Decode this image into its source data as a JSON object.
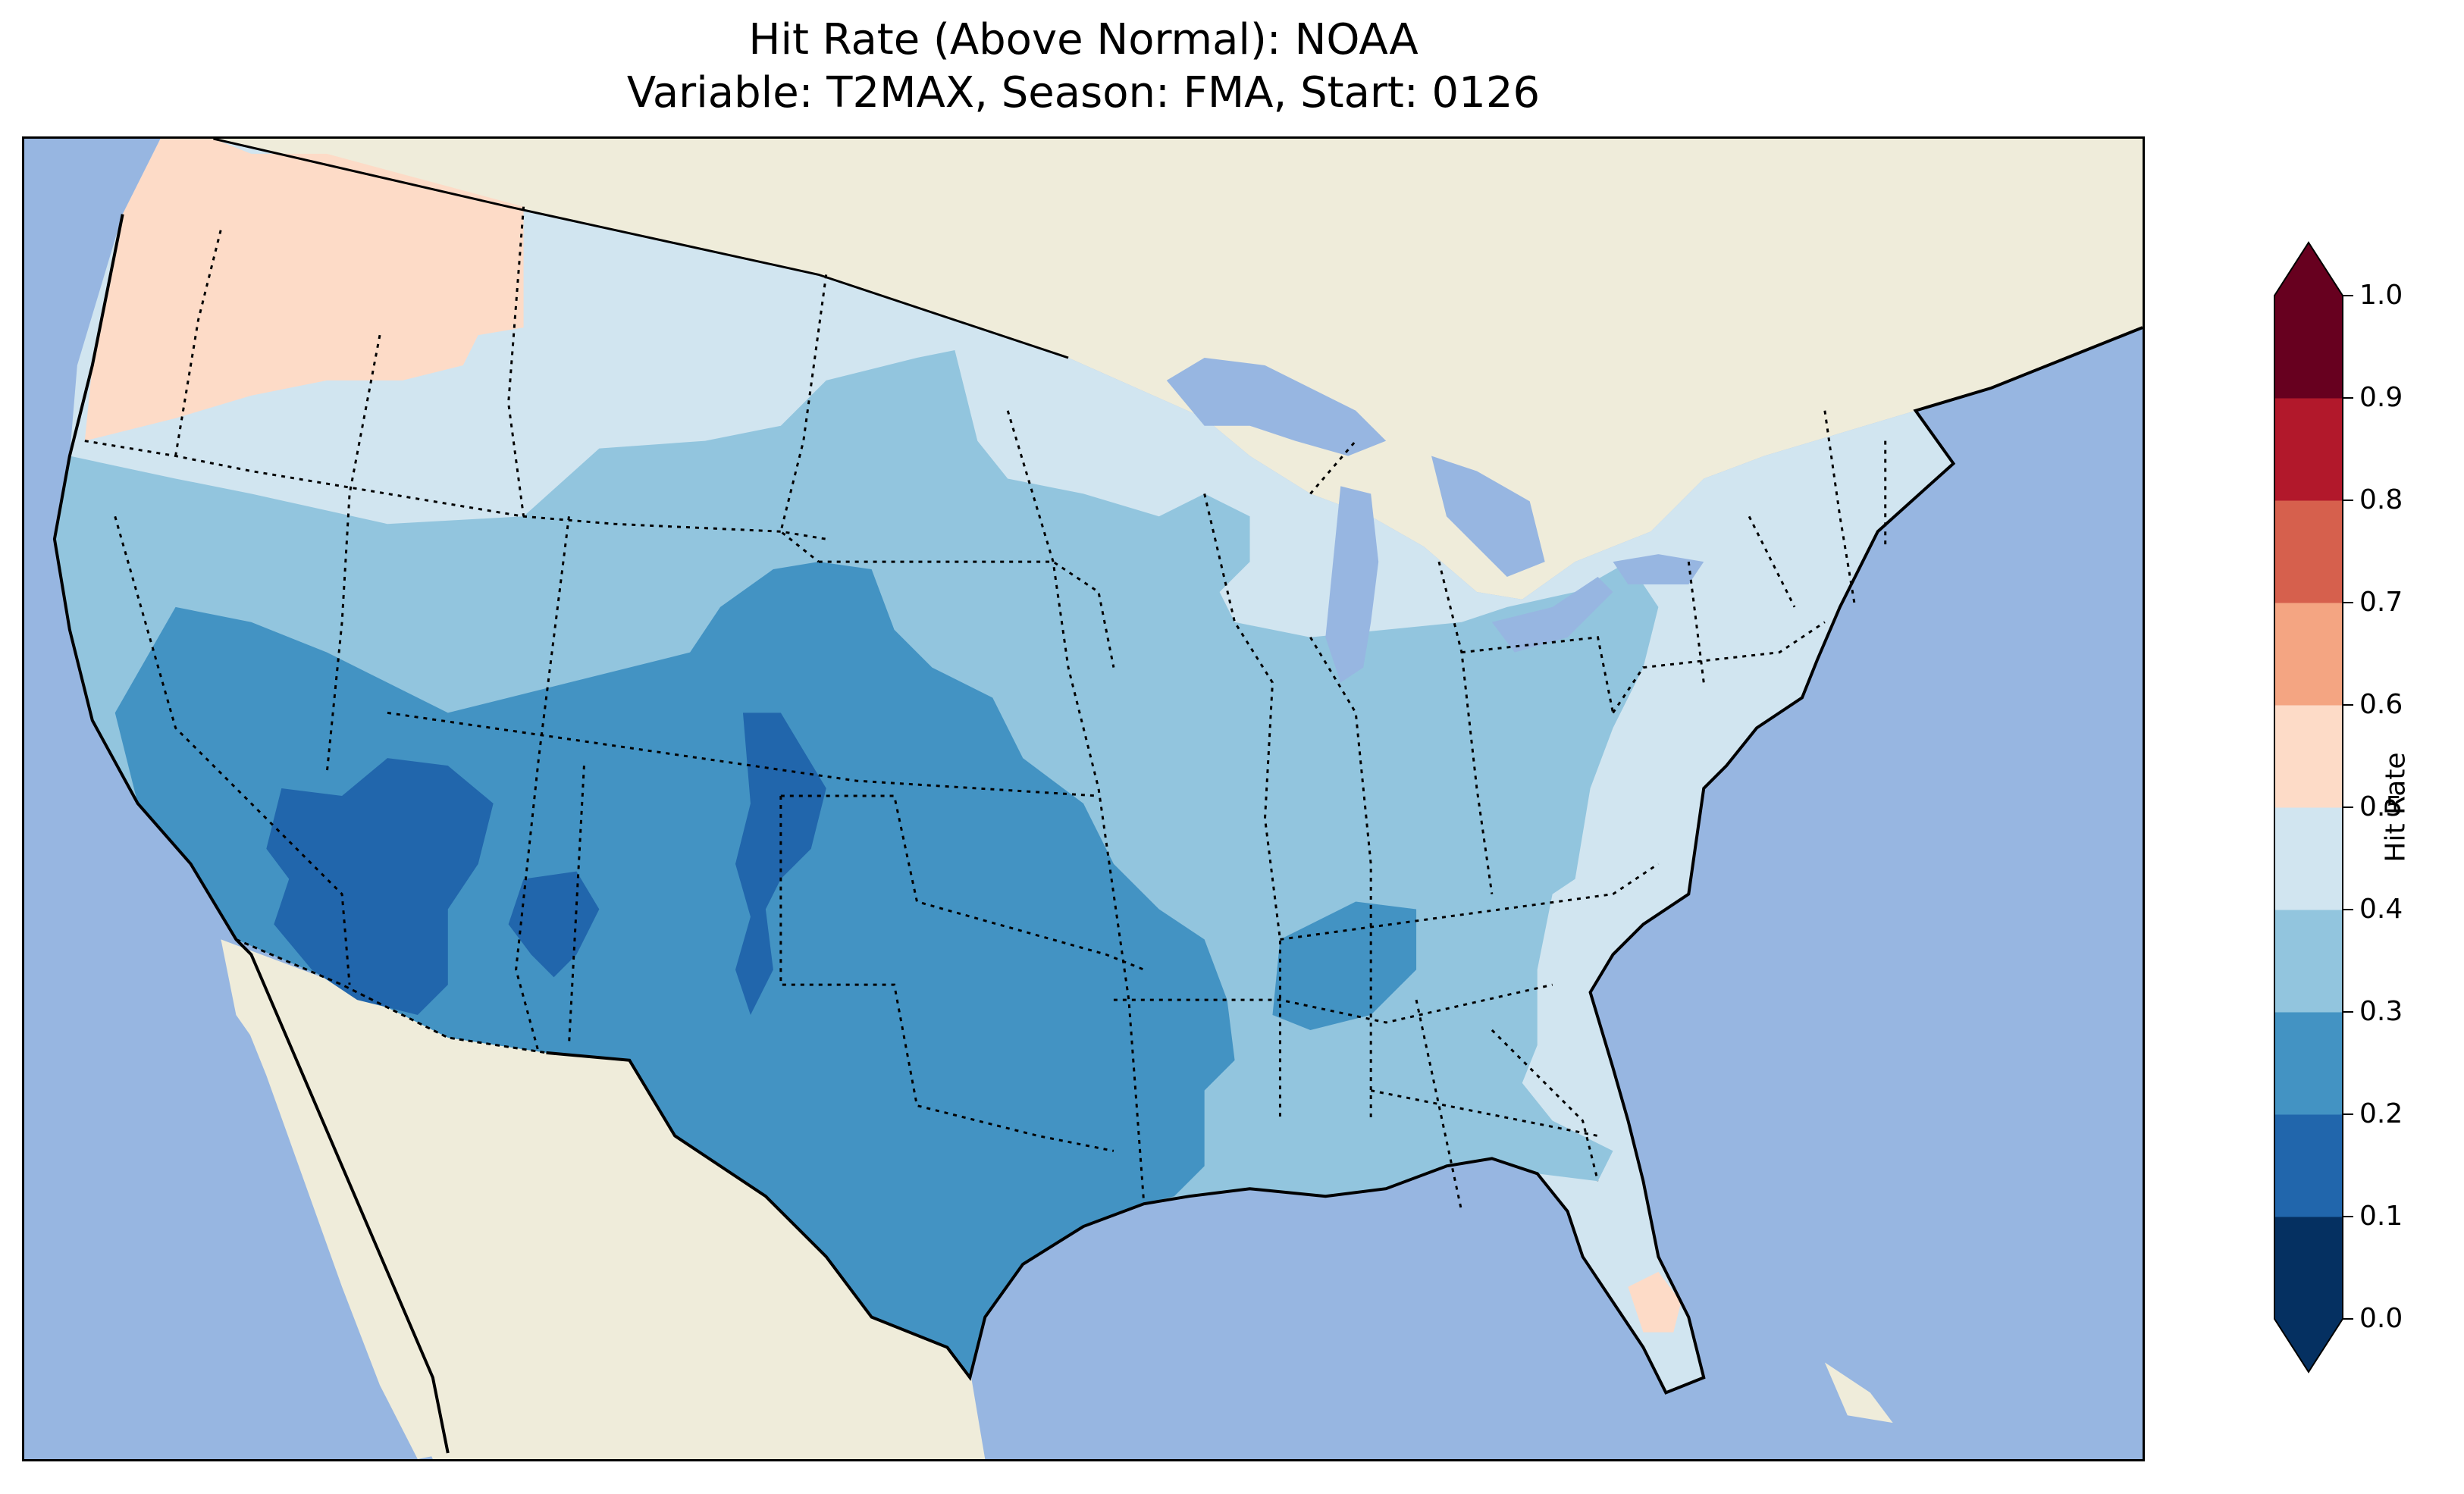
{
  "figure": {
    "title_line1": "Hit Rate (Above Normal): NOAA",
    "title_line2": "Variable: T2MAX, Season: FMA, Start: 0126"
  },
  "map": {
    "ocean_color": "#97b6e1",
    "land_color": "#efecda",
    "lake_color": "#97b6e1",
    "boundaries": "state borders dotted, coastlines solid"
  },
  "colorbar": {
    "label": "Hit Rate",
    "extend": "both",
    "ticks": [
      "0.0",
      "0.1",
      "0.2",
      "0.3",
      "0.4",
      "0.5",
      "0.6",
      "0.7",
      "0.8",
      "0.9",
      "1.0"
    ],
    "bins": [
      {
        "range": [
          0.0,
          0.1
        ],
        "color": "#053061"
      },
      {
        "range": [
          0.1,
          0.2
        ],
        "color": "#2166ac"
      },
      {
        "range": [
          0.2,
          0.3
        ],
        "color": "#4393c3"
      },
      {
        "range": [
          0.3,
          0.4
        ],
        "color": "#92c5de"
      },
      {
        "range": [
          0.4,
          0.5
        ],
        "color": "#d1e5f0"
      },
      {
        "range": [
          0.5,
          0.6
        ],
        "color": "#fddbc7"
      },
      {
        "range": [
          0.6,
          0.7
        ],
        "color": "#f4a582"
      },
      {
        "range": [
          0.7,
          0.8
        ],
        "color": "#d6604d"
      },
      {
        "range": [
          0.8,
          0.9
        ],
        "color": "#b2182b"
      },
      {
        "range": [
          0.9,
          1.0
        ],
        "color": "#67001f"
      }
    ],
    "under_color": "#053061",
    "over_color": "#67001f"
  },
  "regions": [
    {
      "name": "pacific-northwest",
      "value_bin": "0.5-0.6",
      "color": "#fddbc7"
    },
    {
      "name": "northern-tier",
      "value_bin": "0.4-0.5",
      "color": "#d1e5f0"
    },
    {
      "name": "great-plains",
      "value_bin": "0.3-0.4",
      "color": "#92c5de"
    },
    {
      "name": "southwest-and-texas",
      "value_bin": "0.2-0.3",
      "color": "#4393c3"
    },
    {
      "name": "four-corners-core",
      "value_bin": "0.1-0.2",
      "color": "#2166ac"
    },
    {
      "name": "southeast",
      "value_bin": "0.3-0.4",
      "color": "#92c5de"
    },
    {
      "name": "east-coast",
      "value_bin": "0.4-0.5",
      "color": "#d1e5f0"
    },
    {
      "name": "south-florida",
      "value_bin": "0.5-0.6",
      "color": "#fddbc7"
    }
  ]
}
